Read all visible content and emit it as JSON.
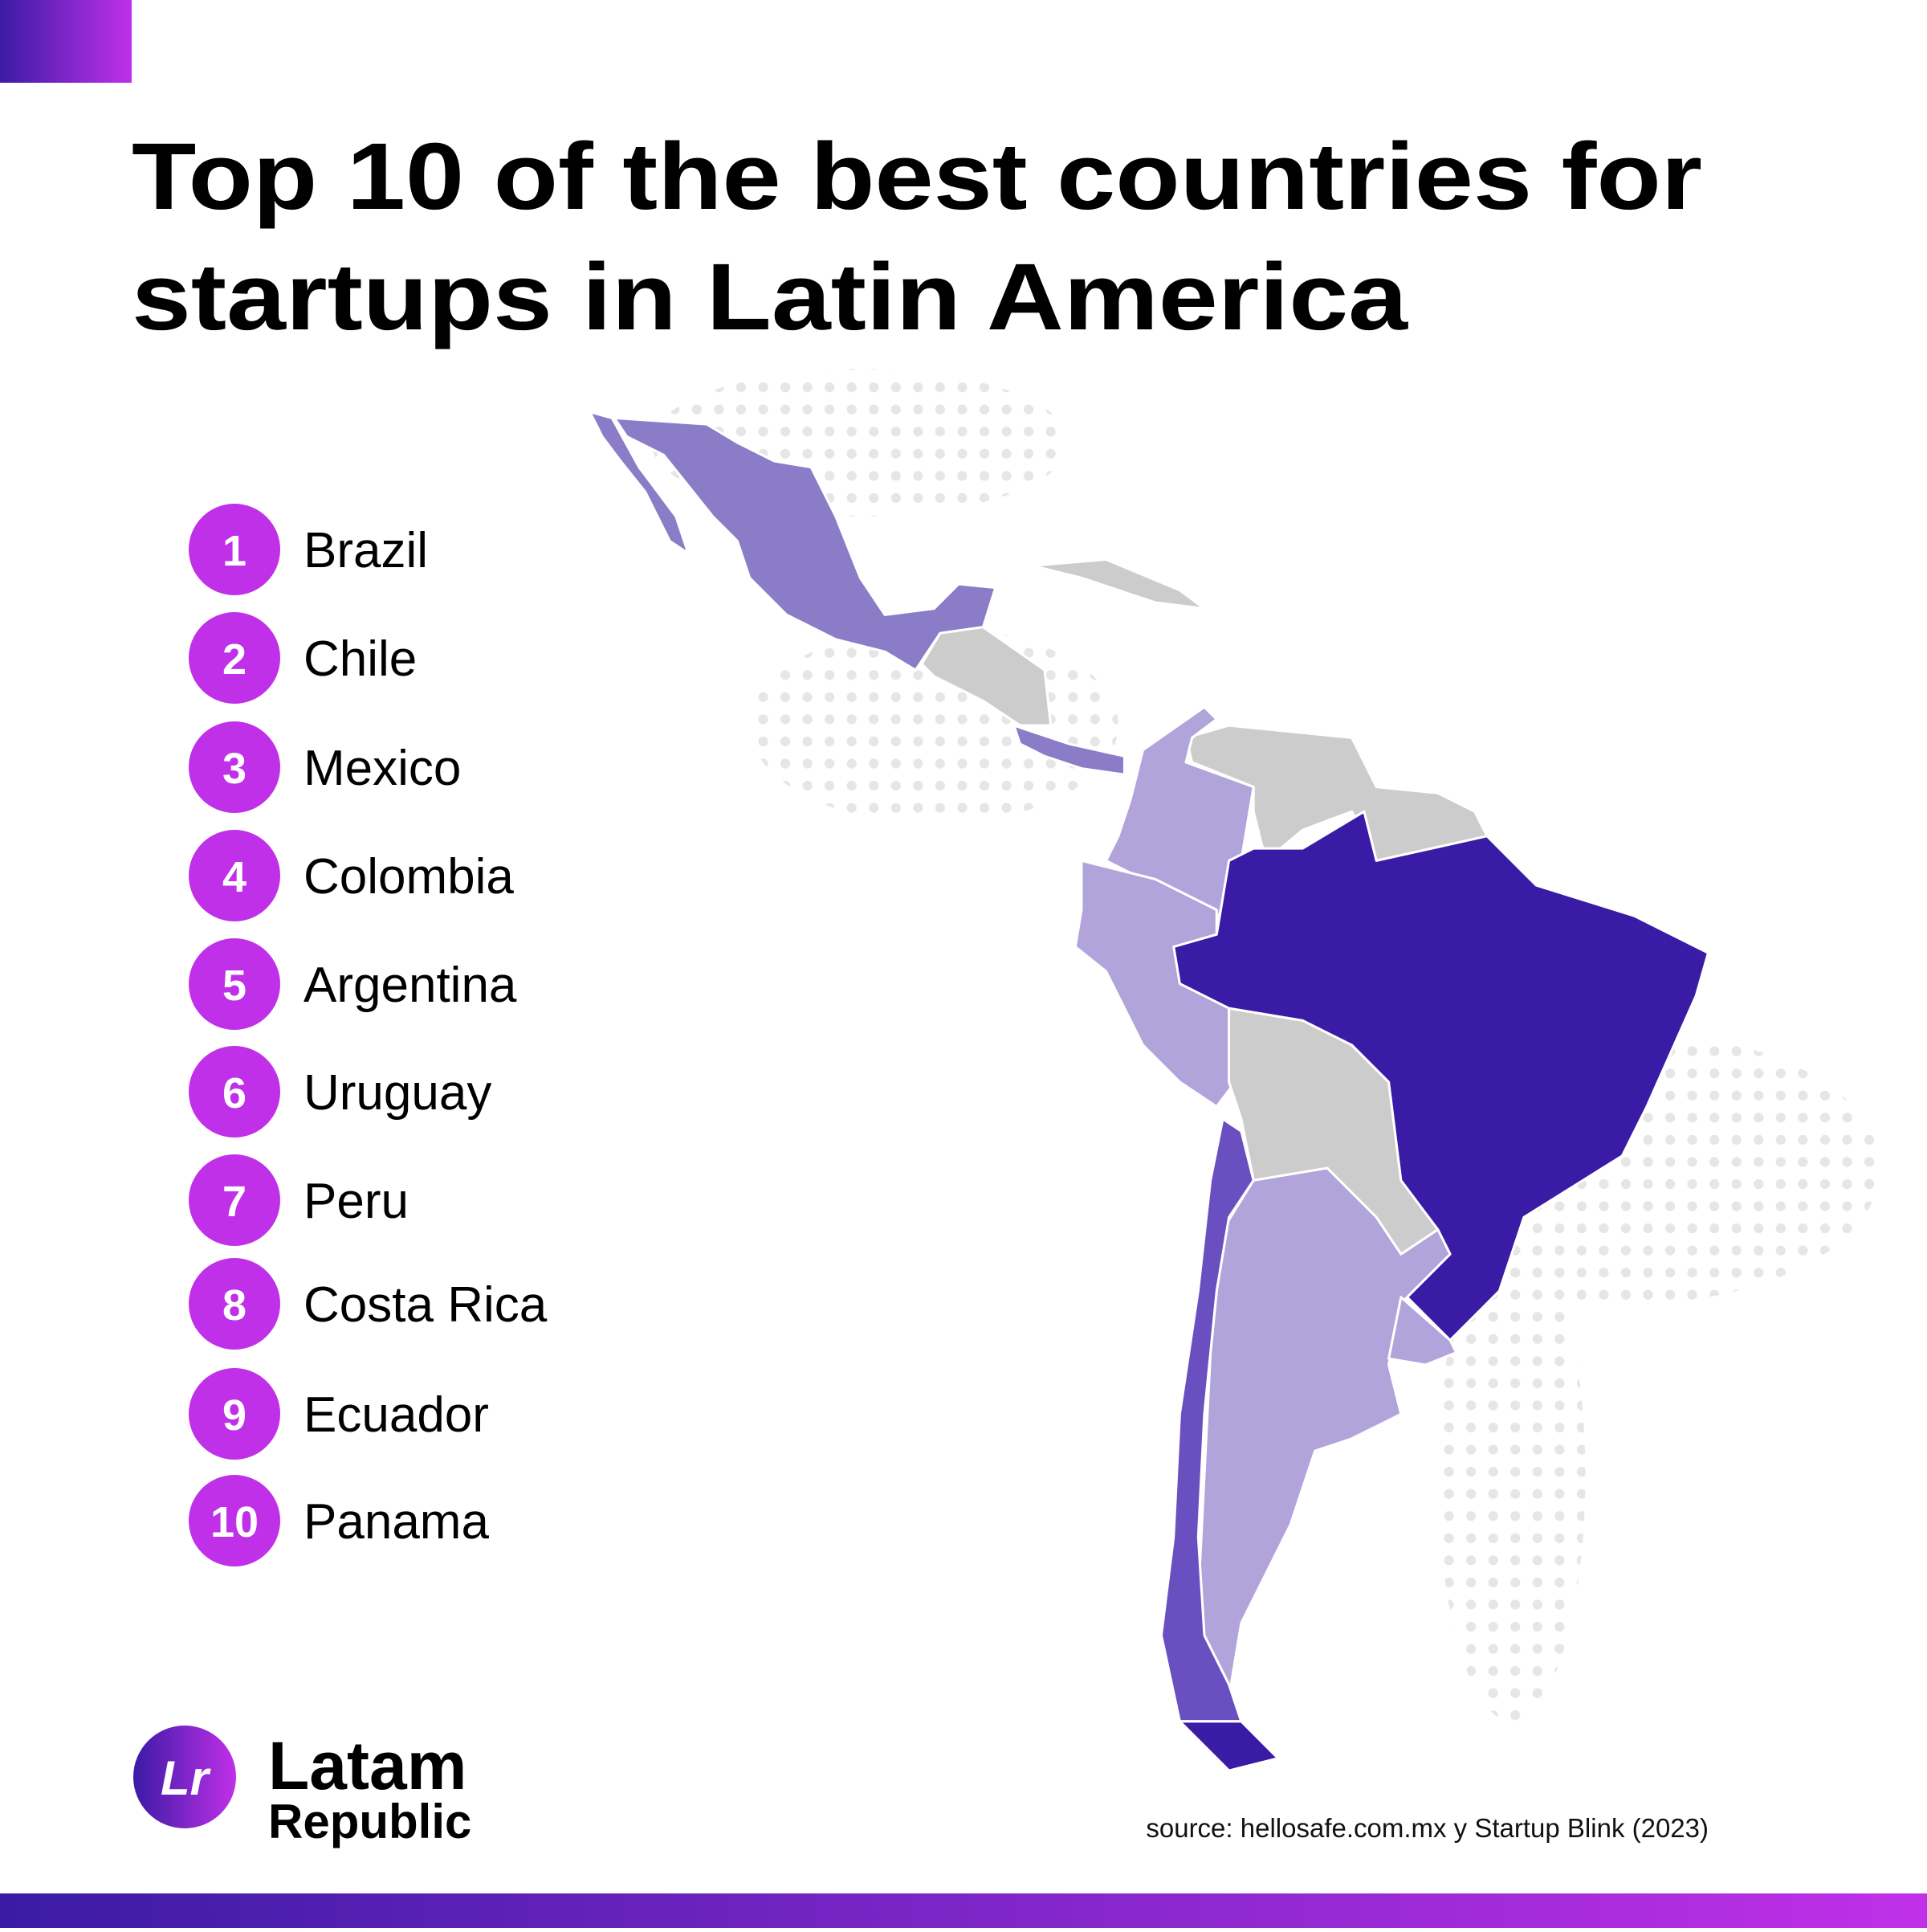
{
  "title_lines": [
    "Top 10 of the best countries for",
    "startups in Latin America"
  ],
  "ranking": [
    {
      "rank": 1,
      "country": "Brazil"
    },
    {
      "rank": 2,
      "country": "Chile"
    },
    {
      "rank": 3,
      "country": "Mexico"
    },
    {
      "rank": 4,
      "country": "Colombia"
    },
    {
      "rank": 5,
      "country": "Argentina"
    },
    {
      "rank": 6,
      "country": "Uruguay"
    },
    {
      "rank": 7,
      "country": "Peru"
    },
    {
      "rank": 8,
      "country": "Costa Rica"
    },
    {
      "rank": 9,
      "country": "Ecuador"
    },
    {
      "rank": 10,
      "country": "Panama"
    }
  ],
  "logo": {
    "mark": "Lr",
    "line1": "Latam",
    "line2": "Republic"
  },
  "source": "source: hellosafe.com.mx y Startup Blink (2023)"
}
